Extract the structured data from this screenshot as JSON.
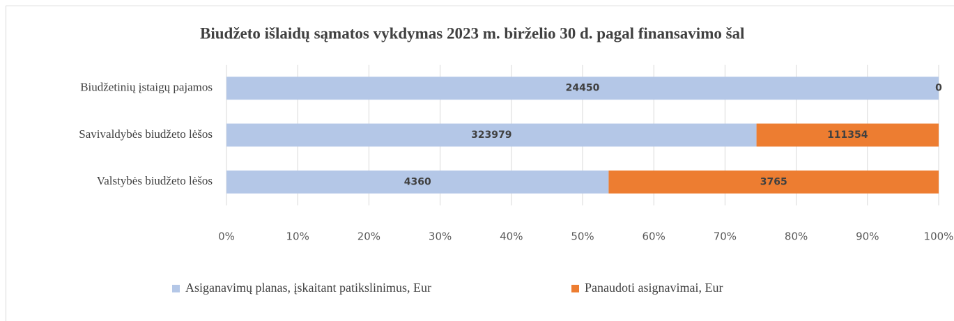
{
  "chart_data": {
    "type": "bar",
    "orientation": "horizontal",
    "stacked": "percent",
    "title": "Biudžeto išlaidų sąmatos vykdymas 2023 m. birželio 30 d. pagal finansavimo šal",
    "categories": [
      "Biudžetinių įstaigų pajamos",
      "Savivaldybės biudžeto lėšos",
      "Valstybės biudžeto lėšos"
    ],
    "series": [
      {
        "name": "Asiganavimų planas, įskaitant patikslinimus, Eur",
        "color": "#b4c7e7",
        "values": [
          24450,
          323979,
          4360
        ]
      },
      {
        "name": "Panaudoti asignavimai, Eur",
        "color": "#ed7d31",
        "values": [
          0,
          111354,
          3765
        ]
      }
    ],
    "xlim": [
      0,
      100
    ],
    "xticks": [
      {
        "value": 0,
        "label": "0%"
      },
      {
        "value": 10,
        "label": "10%"
      },
      {
        "value": 20,
        "label": "20%"
      },
      {
        "value": 30,
        "label": "30%"
      },
      {
        "value": 40,
        "label": "40%"
      },
      {
        "value": 50,
        "label": "50%"
      },
      {
        "value": 60,
        "label": "60%"
      },
      {
        "value": 70,
        "label": "70%"
      },
      {
        "value": 80,
        "label": "80%"
      },
      {
        "value": 90,
        "label": "90%"
      },
      {
        "value": 100,
        "label": "100%"
      }
    ],
    "grid": true,
    "legend": "bottom"
  }
}
